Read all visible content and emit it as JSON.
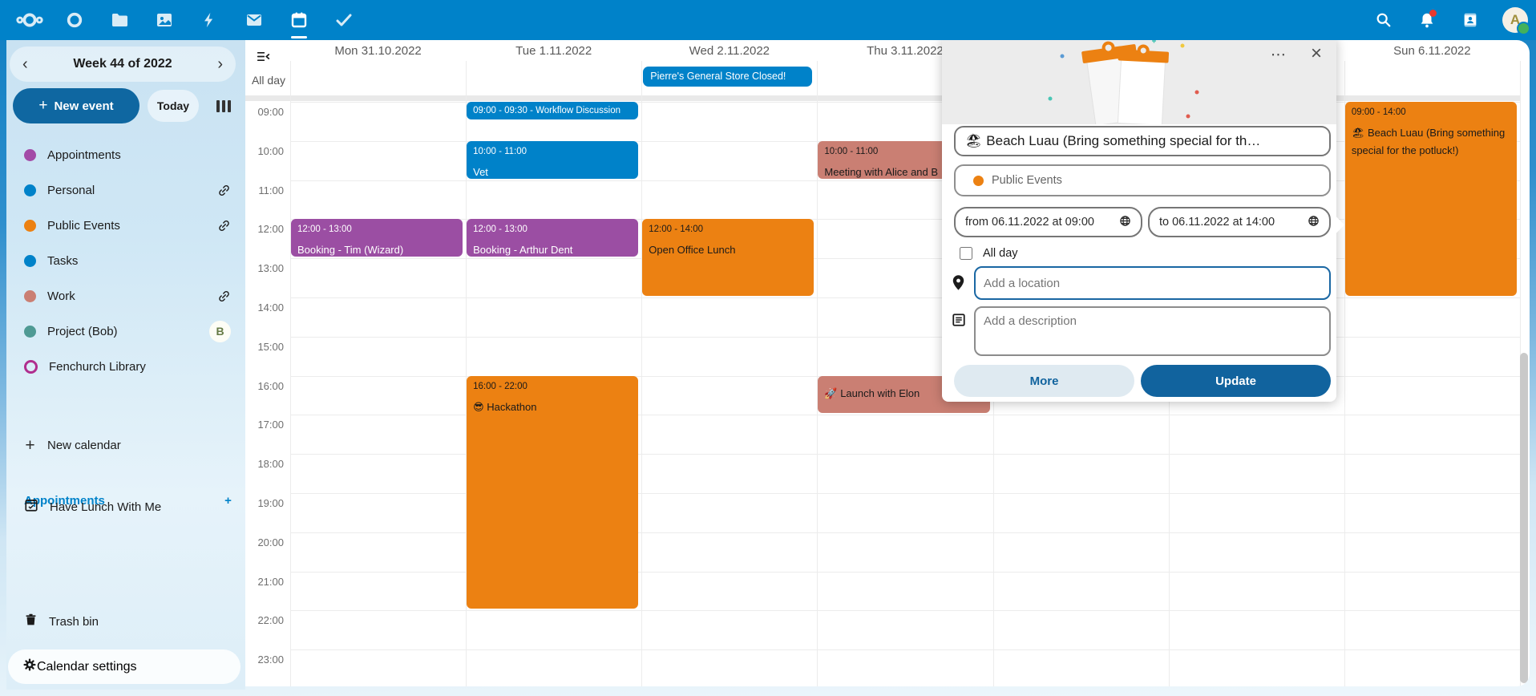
{
  "colors": {
    "primary": "#0082c9",
    "button_primary": "#11639e",
    "event_blue": "#0082c9",
    "event_purple": "#9b4ea3",
    "event_orange": "#ec8112",
    "event_salmon": "#ca7f73"
  },
  "topbar": {
    "app_icons": [
      "nextcloud-logo",
      "circle-app-icon",
      "files-icon",
      "photos-icon",
      "activity-icon",
      "mail-icon",
      "calendar-icon",
      "tasks-icon"
    ],
    "right_icons": [
      "search-icon",
      "notifications-icon",
      "contacts-icon",
      "avatar"
    ],
    "avatar_letter": "A"
  },
  "sidebar": {
    "week_label": "Week 44 of 2022",
    "new_event_label": "New event",
    "today_label": "Today",
    "calendars": [
      {
        "label": "Appointments",
        "color": "#a34ba7",
        "shape": "dot",
        "link": false,
        "badge": ""
      },
      {
        "label": "Personal",
        "color": "#0082c9",
        "shape": "dot",
        "link": true,
        "badge": ""
      },
      {
        "label": "Public Events",
        "color": "#ec8112",
        "shape": "dot",
        "link": true,
        "badge": ""
      },
      {
        "label": "Tasks",
        "color": "#0082c9",
        "shape": "dot",
        "link": false,
        "badge": ""
      },
      {
        "label": "Work",
        "color": "#ca7f73",
        "shape": "dot",
        "link": true,
        "badge": ""
      },
      {
        "label": "Project (Bob)",
        "color": "#4f9a94",
        "shape": "dot",
        "link": false,
        "badge": "B"
      },
      {
        "label": "Fenchurch Library",
        "color": "#b02e8e",
        "shape": "ring",
        "link": false,
        "badge": ""
      }
    ],
    "new_calendar_label": "New calendar",
    "section_heading": "Appointments",
    "appointments": [
      {
        "label": "Have Lunch With Me"
      }
    ],
    "trash_label": "Trash bin",
    "settings_label": "Calendar settings"
  },
  "calendar": {
    "allday_label": "All day",
    "days": [
      "Mon 31.10.2022",
      "Tue 1.11.2022",
      "Wed 2.11.2022",
      "Thu 3.11.2022",
      "",
      "",
      "Sun 6.11.2022"
    ],
    "hours": [
      "09:00",
      "10:00",
      "11:00",
      "12:00",
      "13:00",
      "14:00",
      "15:00",
      "16:00",
      "17:00",
      "18:00",
      "19:00",
      "20:00",
      "21:00",
      "22:00",
      "23:00"
    ],
    "allday_events": [
      {
        "day": 2,
        "title": "Pierre's General Store Closed!",
        "color": "#0082c9",
        "text": "#ffffff"
      }
    ],
    "events": [
      {
        "day": 0,
        "start": 12,
        "end": 13,
        "time": "12:00 - 13:00",
        "title": "Booking - Tim (Wizard)",
        "color": "#9b4ea3",
        "text": "#ffffff",
        "compact": false
      },
      {
        "day": 1,
        "start": 9,
        "end": 9.5,
        "time": "09:00 - 09:30 - Workflow Discussion",
        "title": "",
        "color": "#0082c9",
        "text": "#ffffff",
        "compact": true
      },
      {
        "day": 1,
        "start": 10,
        "end": 11,
        "time": "10:00 - 11:00",
        "title": "Vet",
        "color": "#0082c9",
        "text": "#ffffff",
        "compact": false
      },
      {
        "day": 1,
        "start": 12,
        "end": 13,
        "time": "12:00 - 13:00",
        "title": "Booking - Arthur Dent",
        "color": "#9b4ea3",
        "text": "#ffffff",
        "compact": false
      },
      {
        "day": 1,
        "start": 16,
        "end": 22,
        "time": "16:00 - 22:00",
        "title": "😎 Hackathon",
        "color": "#ec8112",
        "text": "#1a1a1a",
        "compact": false
      },
      {
        "day": 2,
        "start": 12,
        "end": 14,
        "time": "12:00 - 14:00",
        "title": "Open Office Lunch",
        "color": "#ec8112",
        "text": "#1a1a1a",
        "compact": false
      },
      {
        "day": 3,
        "start": 10,
        "end": 11,
        "time": "10:00 - 11:00",
        "title": "Meeting with Alice and B",
        "color": "#ca7f73",
        "text": "#1a1a1a",
        "compact": false
      },
      {
        "day": 3,
        "start": 16,
        "end": 17,
        "time": "",
        "title": "🚀 Launch with Elon",
        "color": "#ca7f73",
        "text": "#1a1a1a",
        "compact": false
      },
      {
        "day": 6,
        "start": 9,
        "end": 14,
        "time": "09:00 - 14:00",
        "title": "🏖 Beach Luau (Bring something special for the potluck!)",
        "color": "#ec8112",
        "text": "#1a1a1a",
        "compact": false
      }
    ]
  },
  "popup": {
    "title_value": "🏖 Beach Luau (Bring something special for th…",
    "calendar_name": "Public Events",
    "calendar_dot_color": "#ec8112",
    "from_value": "from 06.11.2022 at 09:00",
    "to_value": "to 06.11.2022 at 14:00",
    "allday_label": "All day",
    "allday_checked": false,
    "location_placeholder": "Add a location",
    "description_placeholder": "Add a description",
    "more_label": "More",
    "update_label": "Update",
    "menu_glyph": "⋯",
    "close_glyph": "×"
  }
}
